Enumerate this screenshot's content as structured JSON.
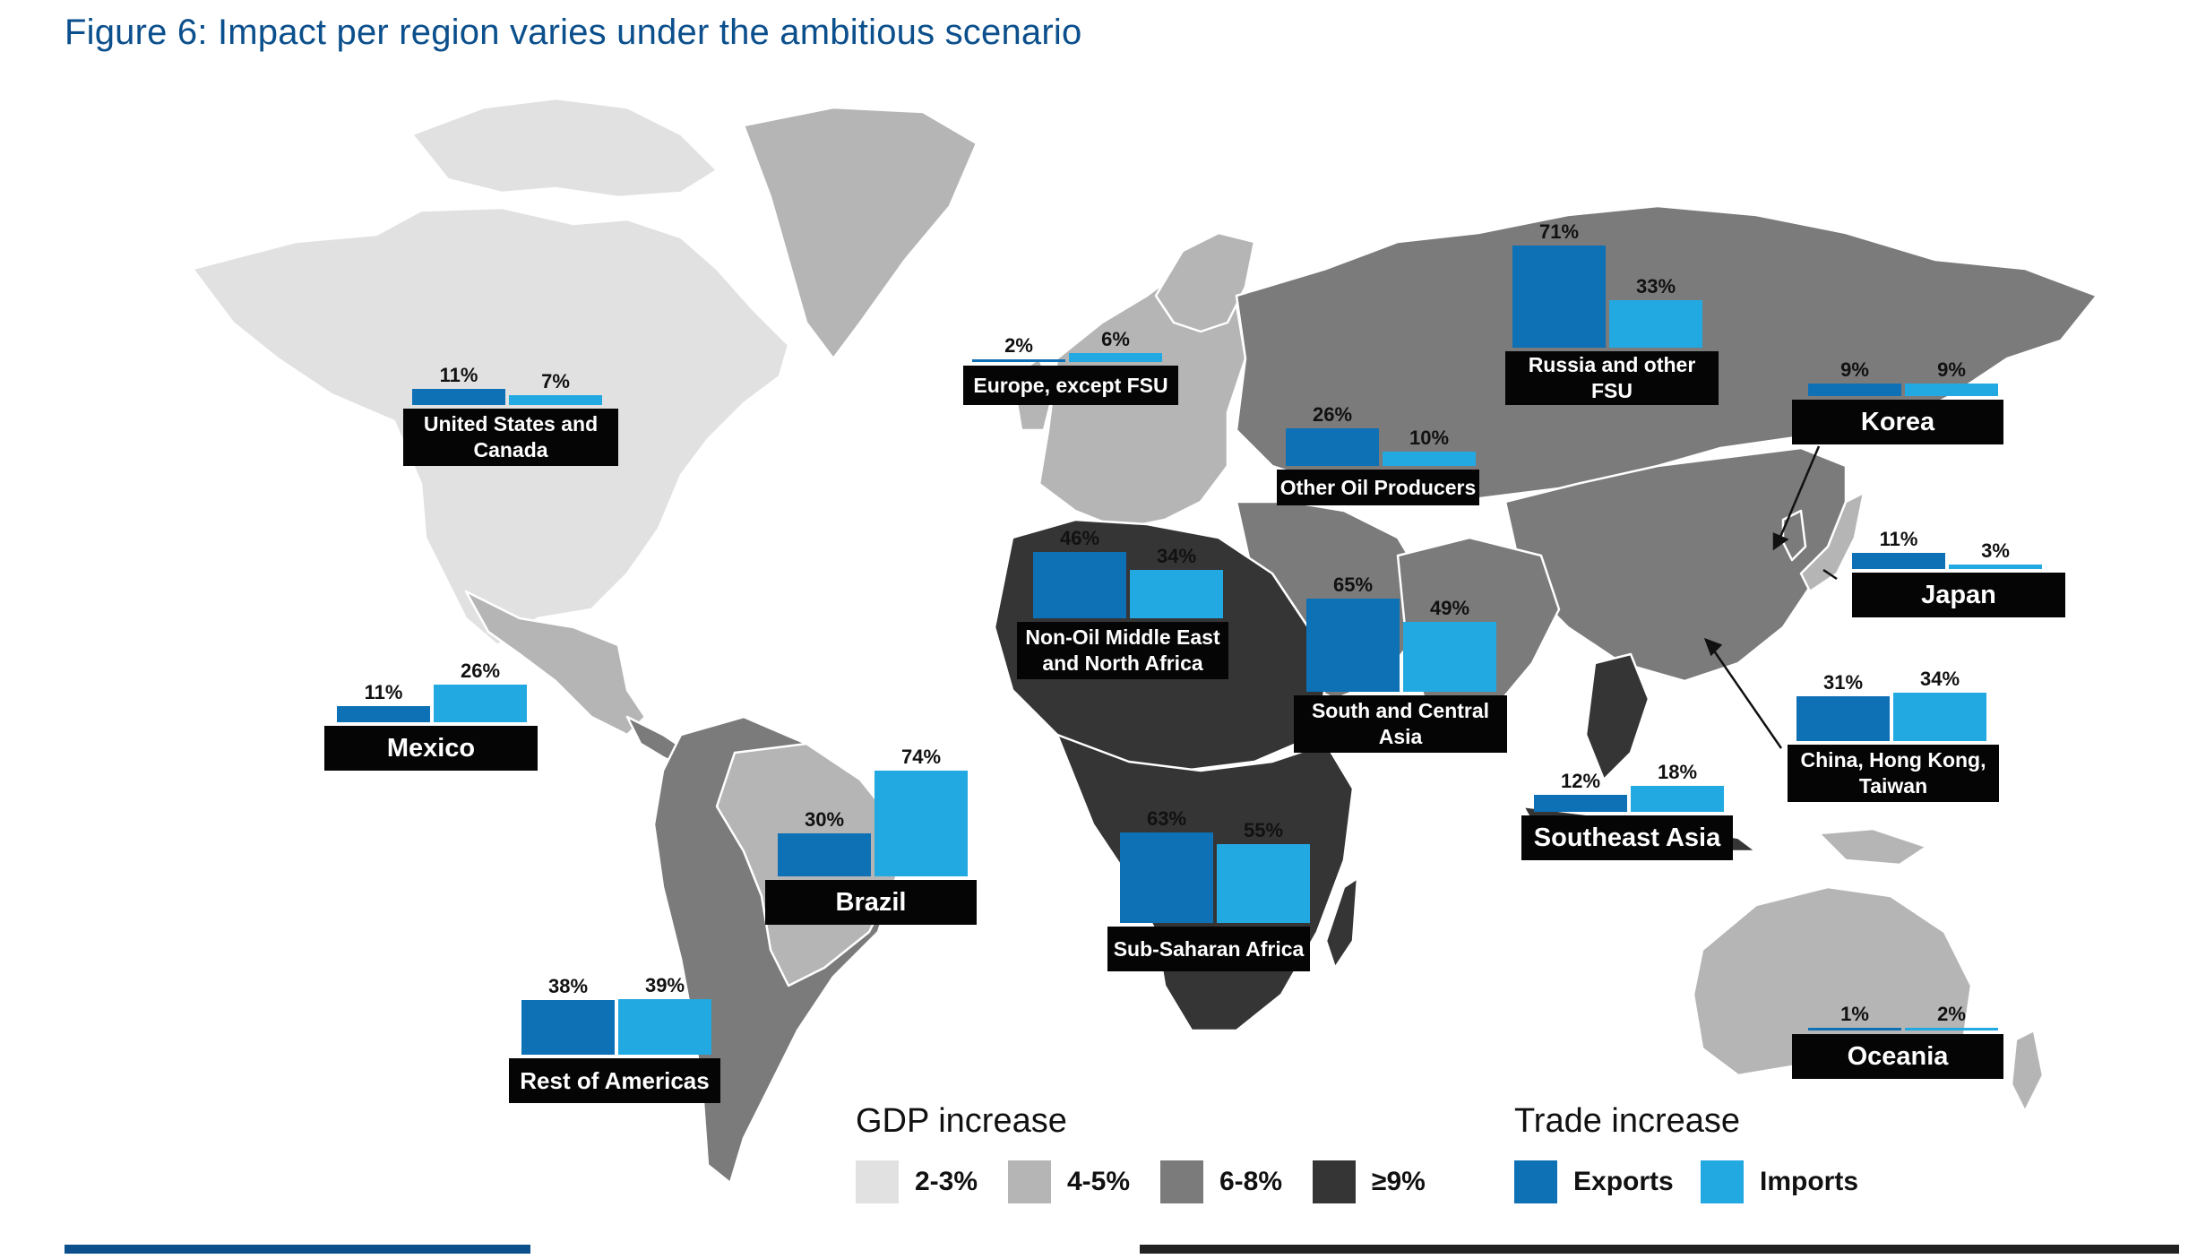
{
  "title": "Figure 6: Impact per region varies under the ambitious scenario",
  "colors": {
    "gdp_2_3": "#e1e1e1",
    "gdp_4_5": "#b5b5b5",
    "gdp_6_8": "#7b7b7b",
    "gdp_9": "#353535",
    "exports": "#0e70b5",
    "imports": "#22a9e1",
    "label_bg": "#050505",
    "title": "#0b4f8c"
  },
  "regions": [
    {
      "name": "United States and Canada",
      "exports": "11%",
      "imports": "7%",
      "exports_val": 11,
      "imports_val": 7,
      "gdp_group": "gdp_2_3"
    },
    {
      "name": "Europe, except FSU",
      "exports": "2%",
      "imports": "6%",
      "exports_val": 2,
      "imports_val": 6,
      "gdp_group": "gdp_4_5"
    },
    {
      "name": "Russia and other FSU",
      "exports": "71%",
      "imports": "33%",
      "exports_val": 71,
      "imports_val": 33,
      "gdp_group": "gdp_6_8"
    },
    {
      "name": "Korea",
      "exports": "9%",
      "imports": "9%",
      "exports_val": 9,
      "imports_val": 9,
      "gdp_group": "gdp_6_8"
    },
    {
      "name": "Other Oil Producers",
      "exports": "26%",
      "imports": "10%",
      "exports_val": 26,
      "imports_val": 10,
      "gdp_group": "gdp_6_8"
    },
    {
      "name": "Japan",
      "exports": "11%",
      "imports": "3%",
      "exports_val": 11,
      "imports_val": 3,
      "gdp_group": "gdp_4_5"
    },
    {
      "name": "Non-Oil Middle East and North Africa",
      "exports": "46%",
      "imports": "34%",
      "exports_val": 46,
      "imports_val": 34,
      "gdp_group": "gdp_9"
    },
    {
      "name": "South and Central Asia",
      "exports": "65%",
      "imports": "49%",
      "exports_val": 65,
      "imports_val": 49,
      "gdp_group": "gdp_6_8"
    },
    {
      "name": "Mexico",
      "exports": "11%",
      "imports": "26%",
      "exports_val": 11,
      "imports_val": 26,
      "gdp_group": "gdp_4_5"
    },
    {
      "name": "China, Hong Kong, Taiwan",
      "exports": "31%",
      "imports": "34%",
      "exports_val": 31,
      "imports_val": 34,
      "gdp_group": "gdp_6_8"
    },
    {
      "name": "Southeast Asia",
      "exports": "12%",
      "imports": "18%",
      "exports_val": 12,
      "imports_val": 18,
      "gdp_group": "gdp_9"
    },
    {
      "name": "Brazil",
      "exports": "30%",
      "imports": "74%",
      "exports_val": 30,
      "imports_val": 74,
      "gdp_group": "gdp_4_5"
    },
    {
      "name": "Sub-Saharan Africa",
      "exports": "63%",
      "imports": "55%",
      "exports_val": 63,
      "imports_val": 55,
      "gdp_group": "gdp_9"
    },
    {
      "name": "Rest of Americas",
      "exports": "38%",
      "imports": "39%",
      "exports_val": 38,
      "imports_val": 39,
      "gdp_group": "gdp_6_8"
    },
    {
      "name": "Oceania",
      "exports": "1%",
      "imports": "2%",
      "exports_val": 1,
      "imports_val": 2,
      "gdp_group": "gdp_4_5"
    }
  ],
  "legend": {
    "gdp_title": "GDP increase",
    "gdp_items": [
      {
        "label": "2-3%",
        "color": "#e1e1e1"
      },
      {
        "label": "4-5%",
        "color": "#b5b5b5"
      },
      {
        "label": "6-8%",
        "color": "#7b7b7b"
      },
      {
        "label": "≥9%",
        "color": "#353535"
      }
    ],
    "trade_title": "Trade increase",
    "trade_items": [
      {
        "label": "Exports",
        "color": "#0e70b5"
      },
      {
        "label": "Imports",
        "color": "#22a9e1"
      }
    ]
  }
}
